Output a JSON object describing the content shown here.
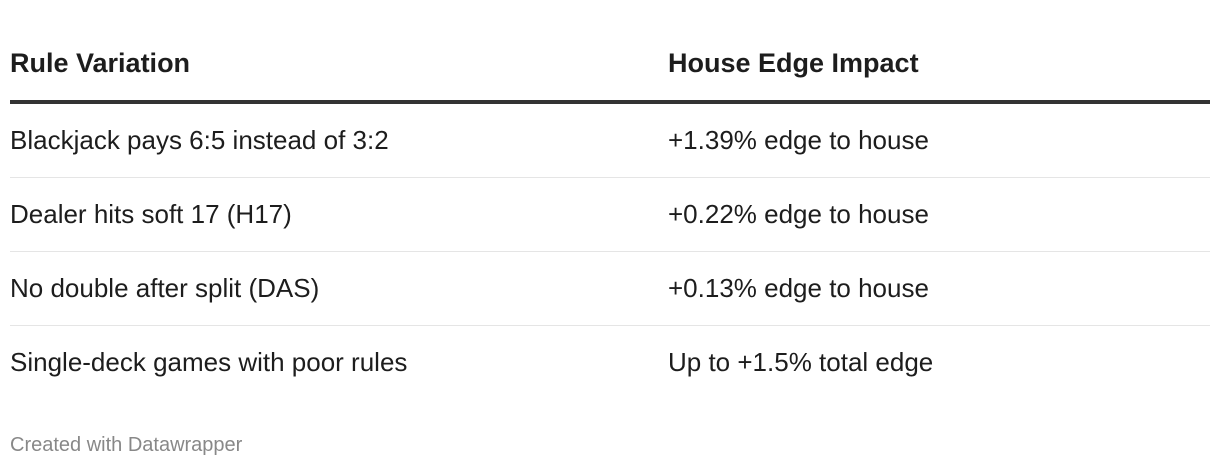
{
  "table": {
    "header": [
      "Rule Variation",
      "House Edge Impact"
    ],
    "rows": [
      [
        "Blackjack pays 6:5 instead of 3:2",
        "+1.39% edge to house"
      ],
      [
        "Dealer hits soft 17 (H17)",
        "+0.22% edge to house"
      ],
      [
        "No double after split (DAS)",
        "+0.13% edge to house"
      ],
      [
        "Single-deck games with poor rules",
        "Up to +1.5% total edge"
      ]
    ]
  },
  "footer": "Created with Datawrapper"
}
